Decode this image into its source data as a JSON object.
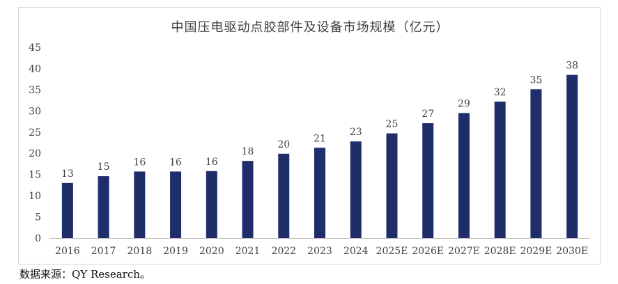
{
  "chart_data": {
    "type": "bar",
    "title": "中国压电驱动点胶部件及设备市场规模（亿元）",
    "categories": [
      "2016",
      "2017",
      "2018",
      "2019",
      "2020",
      "2021",
      "2022",
      "2023",
      "2024",
      "2025E",
      "2026E",
      "2027E",
      "2028E",
      "2029E",
      "2030E"
    ],
    "series": [
      {
        "values": [
          13,
          14.6,
          15.7,
          15.7,
          15.8,
          18.2,
          19.9,
          21.3,
          22.8,
          24.7,
          27.1,
          29.5,
          32.2,
          35.1,
          38.5
        ],
        "labels": [
          "13",
          "15",
          "16",
          "16",
          "16",
          "18",
          "20",
          "21",
          "23",
          "25",
          "27",
          "29",
          "32",
          "35",
          "38"
        ]
      }
    ],
    "ylim": [
      0,
      45
    ],
    "yticks": [
      0,
      5,
      10,
      15,
      20,
      25,
      30,
      35,
      40,
      45
    ],
    "grid": false,
    "legend": "none",
    "bar_color": "#1f2d6b",
    "xlabel": "",
    "ylabel": ""
  },
  "source": "数据来源：QY Research。"
}
